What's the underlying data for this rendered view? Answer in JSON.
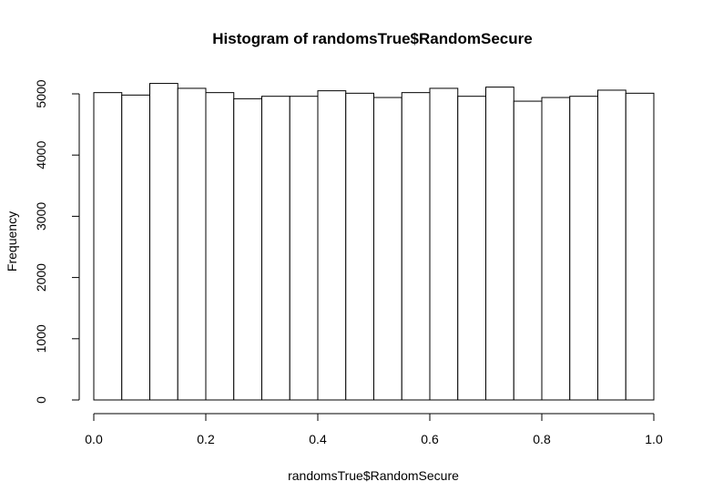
{
  "chart_data": {
    "type": "bar",
    "title": "Histogram of randomsTrue$RandomSecure",
    "xlabel": "randomsTrue$RandomSecure",
    "ylabel": "Frequency",
    "bin_edges": [
      0.0,
      0.05,
      0.1,
      0.15,
      0.2,
      0.25,
      0.3,
      0.35,
      0.4,
      0.45,
      0.5,
      0.55,
      0.6,
      0.65,
      0.7,
      0.75,
      0.8,
      0.85,
      0.9,
      0.95,
      1.0
    ],
    "values": [
      5020,
      4980,
      5170,
      5090,
      5020,
      4920,
      4960,
      4960,
      5050,
      5010,
      4940,
      5020,
      5090,
      4960,
      5110,
      4880,
      4940,
      4960,
      5060,
      5010
    ],
    "xlim": [
      0,
      1
    ],
    "ylim": [
      0,
      5000
    ],
    "x_ticks": [
      0.0,
      0.2,
      0.4,
      0.6,
      0.8,
      1.0
    ],
    "x_tick_labels": [
      "0.0",
      "0.2",
      "0.4",
      "0.6",
      "0.8",
      "1.0"
    ],
    "y_ticks": [
      0,
      1000,
      2000,
      3000,
      4000,
      5000
    ],
    "y_tick_labels": [
      "0",
      "1000",
      "2000",
      "3000",
      "4000",
      "5000"
    ],
    "grid": false,
    "bar_fill": "#ffffff",
    "bar_stroke": "#000000"
  }
}
